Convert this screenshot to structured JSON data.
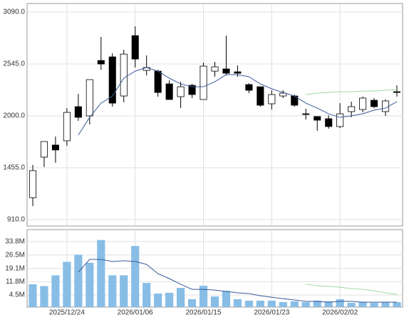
{
  "chart_data": [
    {
      "type": "candlestick",
      "open": [
        1141,
        1567,
        1694,
        1739,
        2097,
        2000,
        2582,
        2620,
        2209,
        2843,
        2478,
        2470,
        2336,
        2202,
        2321,
        2172,
        2470,
        2493,
        2463,
        2329,
        2306,
        2127,
        2209,
        2209,
        2022,
        1993,
        1970,
        1888,
        2045,
        2067,
        2164,
        2045,
        2254
      ],
      "high": [
        1485,
        1731,
        1783,
        2082,
        2231,
        2381,
        2829,
        2657,
        2694,
        2941,
        2635,
        2485,
        2373,
        2358,
        2336,
        2560,
        2567,
        2843,
        2530,
        2343,
        2306,
        2269,
        2269,
        2224,
        2075,
        1993,
        2007,
        2134,
        2149,
        2202,
        2187,
        2172,
        2321
      ],
      "low": [
        1052,
        1462,
        1507,
        1686,
        1948,
        1910,
        2485,
        2097,
        2142,
        2508,
        2426,
        2201,
        2172,
        2082,
        2187,
        2172,
        2411,
        2426,
        2411,
        2239,
        2097,
        2067,
        2187,
        2097,
        1963,
        1843,
        1866,
        1873,
        1985,
        2037,
        2082,
        1999,
        2202
      ],
      "close": [
        1425,
        1731,
        1642,
        2037,
        1985,
        2381,
        2545,
        2134,
        2649,
        2597,
        2508,
        2246,
        2172,
        2306,
        2224,
        2523,
        2515,
        2448,
        2448,
        2269,
        2112,
        2224,
        2239,
        2112,
        2015,
        1955,
        1888,
        2022,
        2097,
        2187,
        2097,
        2157,
        2246
      ],
      "up_color": "#ffffff",
      "down_color": "#000000",
      "series": [
        {
          "color": "#3a5a9a",
          "values": [
            null,
            null,
            null,
            null,
            1798,
            1985,
            2134,
            2209,
            2396,
            2470,
            2508,
            2470,
            2396,
            2336,
            2306,
            2306,
            2358,
            2433,
            2433,
            2411,
            2336,
            2284,
            2246,
            2209,
            2134,
            2082,
            2022,
            1985,
            2000,
            2022,
            2060,
            2082,
            2149
          ]
        },
        {
          "color": "#9fd89f",
          "values": [
            null,
            null,
            null,
            null,
            null,
            null,
            null,
            null,
            null,
            null,
            null,
            null,
            null,
            null,
            null,
            null,
            null,
            null,
            null,
            null,
            null,
            null,
            null,
            null,
            2224,
            2239,
            2246,
            2254,
            2254,
            2261,
            2261,
            2269,
            2276
          ]
        }
      ],
      "ylim": [
        843,
        3180
      ],
      "yticks": [
        {
          "value": 3090,
          "label": "3090.0"
        },
        {
          "value": 2545,
          "label": "2545.0"
        },
        {
          "value": 2000,
          "label": "2000.0"
        },
        {
          "value": 1455,
          "label": "1455.0"
        },
        {
          "value": 910,
          "label": "910.0"
        }
      ],
      "grid": true
    },
    {
      "type": "bar",
      "categories": [
        null,
        null,
        null,
        "2025/12/24",
        null,
        null,
        null,
        null,
        null,
        "2026/01/06",
        null,
        null,
        null,
        null,
        null,
        "2026/01/15",
        null,
        null,
        null,
        null,
        null,
        "2026/01/23",
        null,
        null,
        null,
        null,
        null,
        "2026/02/02",
        null,
        null,
        null,
        null,
        null
      ],
      "values": [
        10.4,
        9.4,
        15.3,
        22.7,
        26.6,
        22.2,
        34.7,
        15.3,
        15.3,
        31.4,
        11.1,
        5.3,
        5.7,
        8.4,
        2.2,
        9.6,
        3.7,
        6.8,
        2.2,
        1.4,
        1.4,
        1.4,
        0.6,
        1.0,
        0.6,
        1.4,
        1.0,
        2.2,
        0.2,
        0.6,
        0.2,
        0.6,
        0.6
      ],
      "color": "#88bde6",
      "series": [
        {
          "color": "#3a5a9a",
          "values": [
            null,
            null,
            null,
            null,
            17,
            24,
            24,
            22.9,
            23.3,
            22.9,
            21.3,
            16.2,
            13.5,
            10.4,
            7.6,
            7.6,
            7.2,
            6.5,
            5.7,
            5.3,
            4.1,
            3.3,
            2.5,
            1.8,
            1.0,
            1.0,
            0.6,
            1.0,
            1.0,
            0.6,
            0.6,
            0.6,
            0.6
          ]
        },
        {
          "color": "#9fd89f",
          "values": [
            null,
            null,
            null,
            null,
            null,
            null,
            null,
            null,
            null,
            null,
            null,
            null,
            null,
            null,
            null,
            null,
            null,
            null,
            null,
            null,
            null,
            null,
            null,
            null,
            10.4,
            9.6,
            9.2,
            8.8,
            8.0,
            7.6,
            6.8,
            5.7,
            4.9
          ]
        }
      ],
      "ylim": [
        -2.1,
        40.4
      ],
      "yticks": [
        {
          "value": 33.8,
          "label": "33.8M"
        },
        {
          "value": 26.5,
          "label": "26.5M"
        },
        {
          "value": 19.1,
          "label": "19.1M"
        },
        {
          "value": 11.8,
          "label": "11.8M"
        },
        {
          "value": 4.5,
          "label": "4.5M"
        }
      ],
      "grid": true
    }
  ]
}
